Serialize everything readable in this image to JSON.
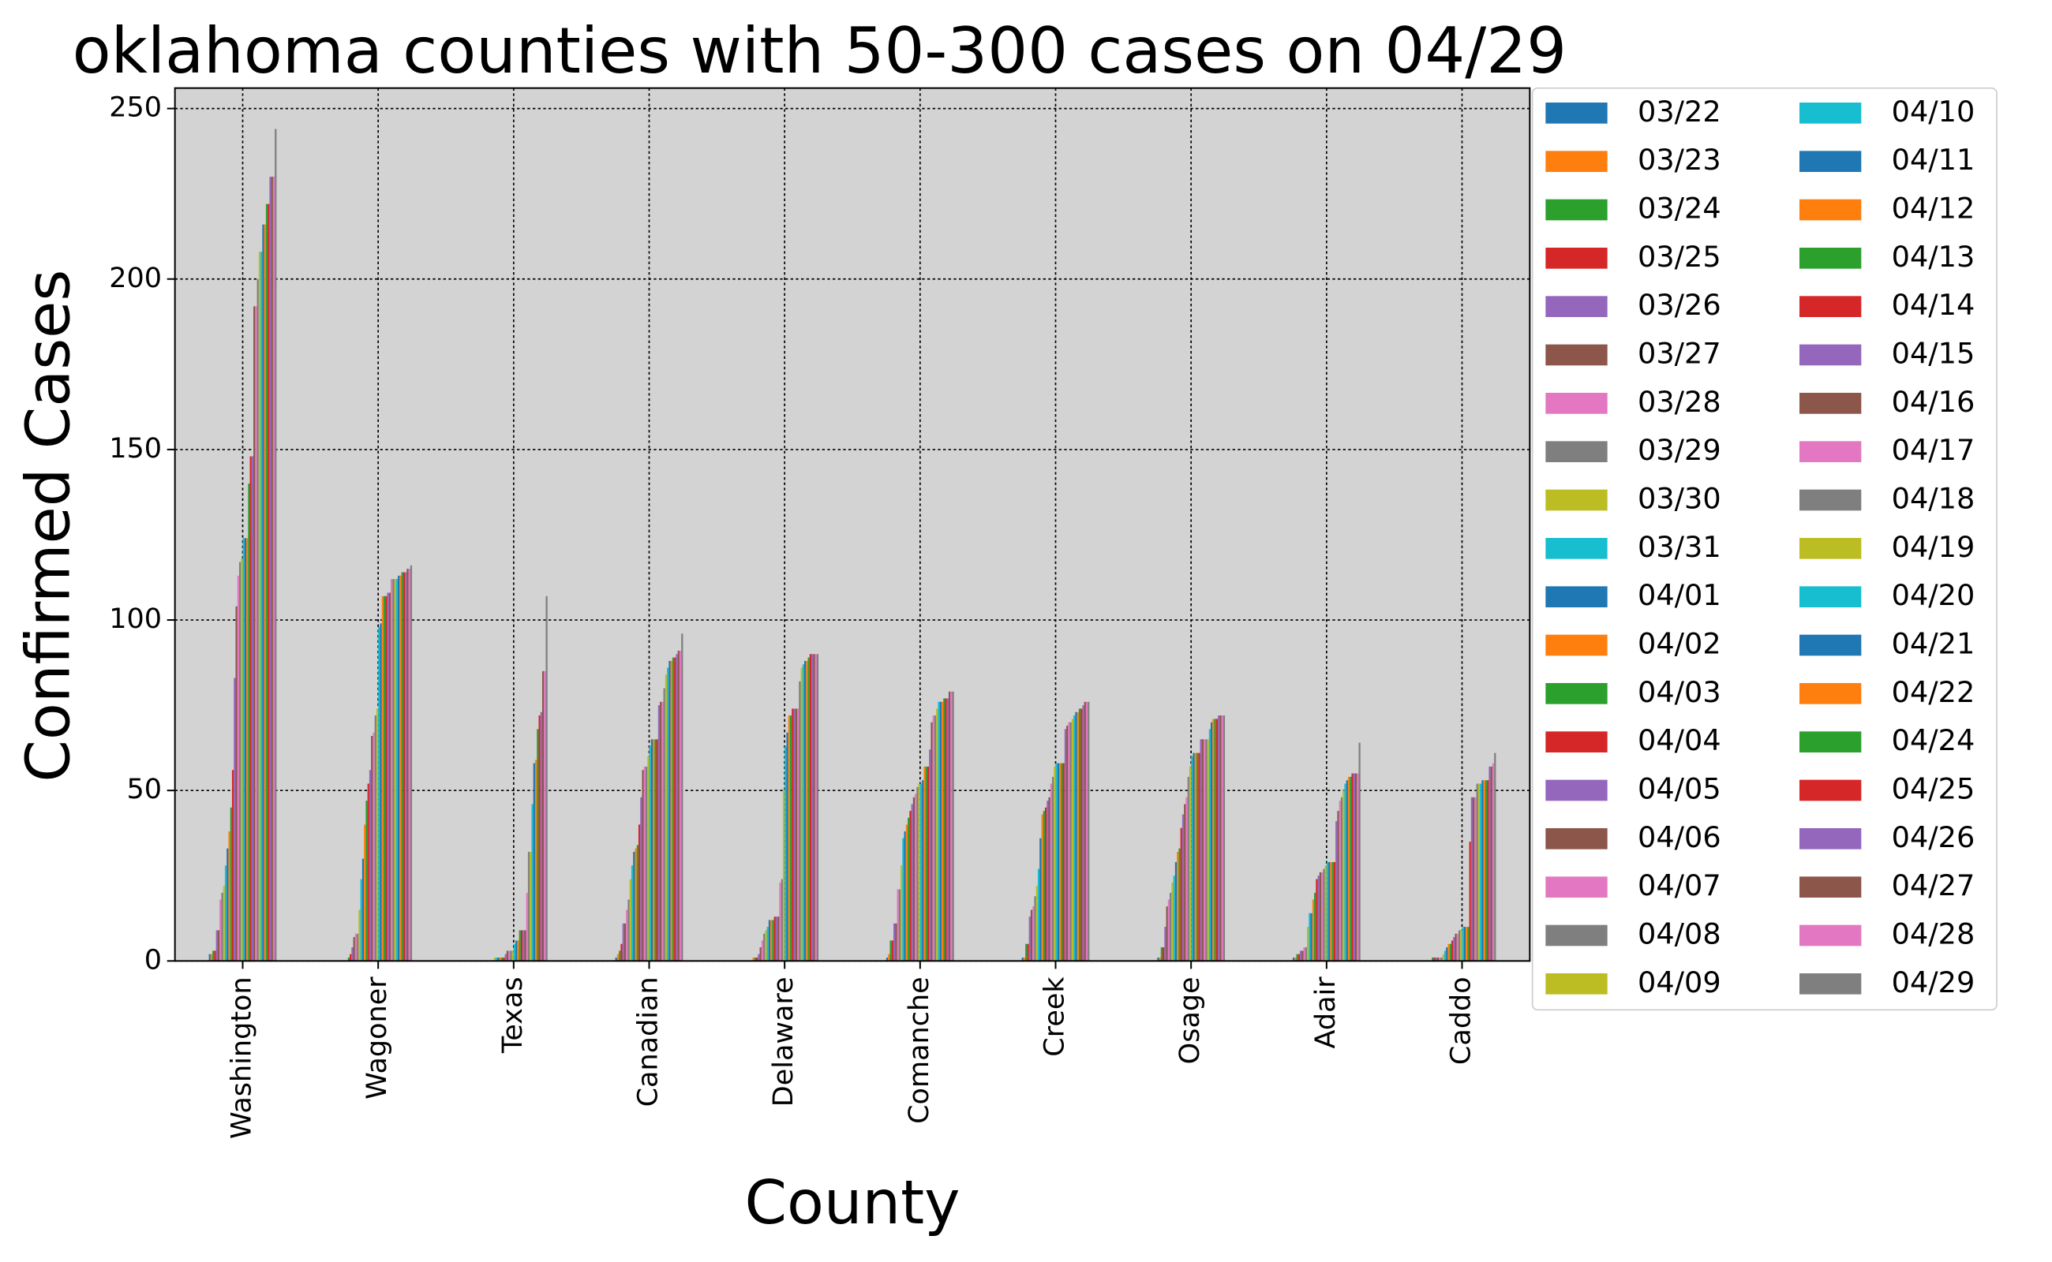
{
  "chart_data": {
    "type": "bar",
    "title": "oklahoma counties with 50-300 cases on 04/29",
    "xlabel": "County",
    "ylabel": "Confirmed Cases",
    "categories": [
      "Washington",
      "Wagoner",
      "Texas",
      "Canadian",
      "Delaware",
      "Comanche",
      "Creek",
      "Osage",
      "Adair",
      "Caddo"
    ],
    "ylim": [
      0,
      256
    ],
    "yticks": [
      0,
      50,
      100,
      150,
      200,
      250
    ],
    "grid": true,
    "legend": "right",
    "legend_columns": 2,
    "series": [
      {
        "name": "03/22",
        "color": "#1f77b4",
        "values": [
          2,
          0,
          0,
          1,
          0,
          1,
          1,
          1,
          1,
          0
        ]
      },
      {
        "name": "03/23",
        "color": "#ff7f0e",
        "values": [
          2,
          0,
          0,
          2,
          1,
          2,
          1,
          1,
          1,
          0
        ]
      },
      {
        "name": "03/24",
        "color": "#2ca02c",
        "values": [
          3,
          1,
          0,
          3,
          1,
          6,
          5,
          4,
          2,
          1
        ]
      },
      {
        "name": "03/25",
        "color": "#d62728",
        "values": [
          3,
          2,
          0,
          5,
          1,
          6,
          5,
          4,
          2,
          1
        ]
      },
      {
        "name": "03/26",
        "color": "#9467bd",
        "values": [
          9,
          4,
          0,
          11,
          2,
          11,
          13,
          10,
          3,
          1
        ]
      },
      {
        "name": "03/27",
        "color": "#8c564b",
        "values": [
          9,
          7,
          0,
          11,
          4,
          11,
          15,
          16,
          3,
          1
        ]
      },
      {
        "name": "03/28",
        "color": "#e377c2",
        "values": [
          18,
          8,
          0,
          15,
          6,
          21,
          16,
          18,
          4,
          1
        ]
      },
      {
        "name": "03/29",
        "color": "#7f7f7f",
        "values": [
          20,
          8,
          0,
          18,
          8,
          21,
          19,
          20,
          4,
          1
        ]
      },
      {
        "name": "03/30",
        "color": "#bcbd22",
        "values": [
          22,
          15,
          1,
          24,
          9,
          28,
          22,
          23,
          10,
          2
        ]
      },
      {
        "name": "03/31",
        "color": "#17becf",
        "values": [
          28,
          24,
          1,
          28,
          10,
          36,
          27,
          25,
          14,
          3
        ]
      },
      {
        "name": "04/01",
        "color": "#1f77b4",
        "values": [
          33,
          30,
          1,
          32,
          12,
          38,
          36,
          29,
          14,
          4
        ]
      },
      {
        "name": "04/02",
        "color": "#ff7f0e",
        "values": [
          38,
          40,
          1,
          33,
          12,
          40,
          43,
          32,
          18,
          5
        ]
      },
      {
        "name": "04/03",
        "color": "#2ca02c",
        "values": [
          45,
          47,
          1,
          34,
          12,
          42,
          44,
          33,
          20,
          5
        ]
      },
      {
        "name": "04/04",
        "color": "#d62728",
        "values": [
          56,
          52,
          1,
          40,
          13,
          44,
          45,
          39,
          24,
          6
        ]
      },
      {
        "name": "04/05",
        "color": "#9467bd",
        "values": [
          83,
          56,
          2,
          48,
          13,
          46,
          47,
          43,
          25,
          7
        ]
      },
      {
        "name": "04/06",
        "color": "#8c564b",
        "values": [
          104,
          66,
          3,
          56,
          13,
          48,
          48,
          46,
          26,
          8
        ]
      },
      {
        "name": "04/07",
        "color": "#e377c2",
        "values": [
          113,
          67,
          3,
          57,
          23,
          49,
          52,
          48,
          26,
          8
        ]
      },
      {
        "name": "04/08",
        "color": "#7f7f7f",
        "values": [
          117,
          72,
          3,
          57,
          24,
          51,
          54,
          54,
          27,
          9
        ]
      },
      {
        "name": "04/09",
        "color": "#bcbd22",
        "values": [
          118,
          74,
          3,
          60,
          50,
          52,
          57,
          57,
          28,
          9
        ]
      },
      {
        "name": "04/10",
        "color": "#17becf",
        "values": [
          124,
          98,
          5,
          63,
          63,
          52,
          58,
          60,
          29,
          10
        ]
      },
      {
        "name": "04/11",
        "color": "#1f77b4",
        "values": [
          124,
          99,
          6,
          65,
          67,
          53,
          58,
          61,
          29,
          10
        ]
      },
      {
        "name": "04/12",
        "color": "#ff7f0e",
        "values": [
          124,
          107,
          6,
          65,
          72,
          57,
          58,
          61,
          29,
          10
        ]
      },
      {
        "name": "04/13",
        "color": "#2ca02c",
        "values": [
          140,
          107,
          9,
          65,
          72,
          57,
          58,
          61,
          29,
          10
        ]
      },
      {
        "name": "04/14",
        "color": "#d62728",
        "values": [
          148,
          107,
          9,
          65,
          74,
          57,
          58,
          61,
          29,
          35
        ]
      },
      {
        "name": "04/15",
        "color": "#9467bd",
        "values": [
          148,
          108,
          9,
          75,
          74,
          62,
          68,
          65,
          41,
          48
        ]
      },
      {
        "name": "04/16",
        "color": "#8c564b",
        "values": [
          192,
          108,
          9,
          76,
          74,
          70,
          69,
          65,
          44,
          48
        ]
      },
      {
        "name": "04/17",
        "color": "#e377c2",
        "values": [
          192,
          112,
          20,
          76,
          74,
          72,
          70,
          65,
          47,
          48
        ]
      },
      {
        "name": "04/18",
        "color": "#7f7f7f",
        "values": [
          200,
          112,
          32,
          80,
          82,
          72,
          70,
          65,
          48,
          52
        ]
      },
      {
        "name": "04/19",
        "color": "#bcbd22",
        "values": [
          208,
          112,
          32,
          84,
          86,
          74,
          71,
          65,
          50,
          52
        ]
      },
      {
        "name": "04/20",
        "color": "#17becf",
        "values": [
          208,
          112,
          46,
          86,
          87,
          76,
          72,
          68,
          52,
          52
        ]
      },
      {
        "name": "04/21",
        "color": "#1f77b4",
        "values": [
          216,
          113,
          58,
          88,
          88,
          76,
          73,
          70,
          53,
          53
        ]
      },
      {
        "name": "04/22",
        "color": "#ff7f0e",
        "values": [
          216,
          113,
          59,
          88,
          88,
          76,
          73,
          71,
          54,
          53
        ]
      },
      {
        "name": "04/24",
        "color": "#2ca02c",
        "values": [
          222,
          114,
          68,
          89,
          89,
          77,
          74,
          71,
          54,
          53
        ]
      },
      {
        "name": "04/25",
        "color": "#d62728",
        "values": [
          222,
          114,
          72,
          89,
          90,
          77,
          74,
          71,
          55,
          53
        ]
      },
      {
        "name": "04/26",
        "color": "#9467bd",
        "values": [
          230,
          114,
          73,
          90,
          90,
          77,
          75,
          72,
          55,
          57
        ]
      },
      {
        "name": "04/27",
        "color": "#8c564b",
        "values": [
          230,
          115,
          85,
          91,
          90,
          79,
          76,
          72,
          55,
          57
        ]
      },
      {
        "name": "04/28",
        "color": "#e377c2",
        "values": [
          230,
          115,
          85,
          91,
          90,
          79,
          76,
          72,
          55,
          58
        ]
      },
      {
        "name": "04/29",
        "color": "#7f7f7f",
        "values": [
          244,
          116,
          107,
          96,
          90,
          79,
          76,
          72,
          64,
          61
        ]
      }
    ]
  }
}
